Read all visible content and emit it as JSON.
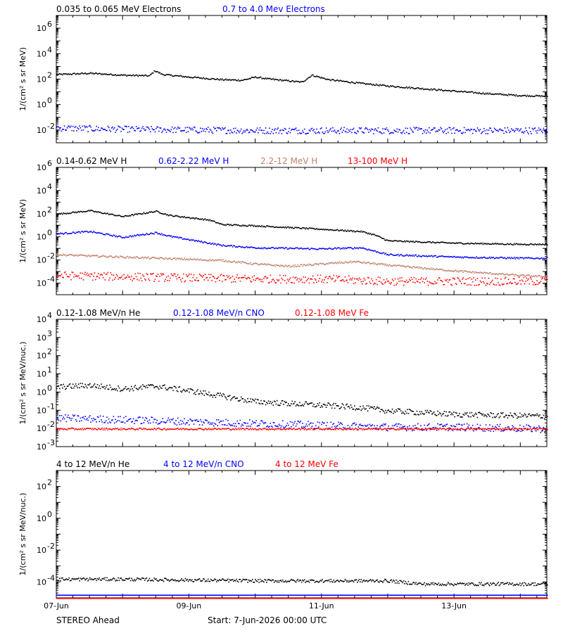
{
  "footer": {
    "spacecraft": "STEREO Ahead",
    "start": "Start:  7-Jun-2026 00:00 UTC"
  },
  "x_ticks": [
    {
      "day": 0,
      "label": "07-Jun"
    },
    {
      "day": 2,
      "label": "09-Jun"
    },
    {
      "day": 4,
      "label": "11-Jun"
    },
    {
      "day": 6,
      "label": "13-Jun"
    }
  ],
  "colors": {
    "black": "#000000",
    "blue": "#0000ff",
    "tan": "#c0806a",
    "red": "#ff0000"
  },
  "chart_data": [
    {
      "type": "scatter",
      "panel": "electrons",
      "ylabel": "1/(cm² s sr MeV)",
      "log_y": true,
      "ylim_exp": [
        -3,
        7
      ],
      "ytick_exps": [
        -2,
        0,
        2,
        4,
        6
      ],
      "xlim_days": [
        0,
        7.4
      ],
      "series": [
        {
          "name": "0.035 to 0.065 MeV Electrons",
          "color": "#000000",
          "x_days": [
            0,
            0.5,
            1.0,
            1.4,
            1.48,
            1.6,
            2.0,
            2.5,
            2.8,
            3.0,
            3.2,
            3.5,
            3.7,
            3.85,
            4.1,
            4.6,
            5.0,
            5.5,
            6.0,
            6.5,
            7.0,
            7.4
          ],
          "log10_values": [
            2.4,
            2.5,
            2.35,
            2.3,
            2.7,
            2.4,
            2.2,
            2.0,
            1.95,
            2.2,
            2.05,
            1.9,
            1.8,
            2.35,
            2.0,
            1.7,
            1.5,
            1.3,
            1.1,
            0.9,
            0.75,
            0.7
          ],
          "scatter": 0.06
        },
        {
          "name": "0.7 to 4.0 Mev Electrons",
          "color": "#0000ff",
          "x_days": [
            0,
            1.0,
            2.0,
            3.0,
            4.0,
            5.0,
            6.0,
            7.4
          ],
          "log10_values": [
            -1.8,
            -1.9,
            -1.95,
            -2.0,
            -2.0,
            -2.0,
            -2.0,
            -2.0
          ],
          "scatter": 0.25
        }
      ]
    },
    {
      "type": "scatter",
      "panel": "protons",
      "ylabel": "1/(cm² s sr MeV)",
      "log_y": true,
      "ylim_exp": [
        -5,
        6
      ],
      "ytick_exps": [
        -4,
        -2,
        0,
        2,
        4,
        6
      ],
      "xlim_days": [
        0,
        7.4
      ],
      "series": [
        {
          "name": "0.14-0.62 MeV H",
          "color": "#000000",
          "x_days": [
            0,
            0.5,
            1.0,
            1.5,
            1.7,
            2.3,
            2.5,
            3.0,
            4.0,
            4.6,
            4.8,
            5.0,
            6.0,
            7.0,
            7.4
          ],
          "log10_values": [
            2.0,
            2.3,
            1.8,
            2.25,
            1.9,
            1.5,
            1.1,
            1.0,
            0.7,
            0.5,
            0.2,
            -0.3,
            -0.5,
            -0.6,
            -0.6
          ],
          "scatter": 0.06
        },
        {
          "name": "0.62-2.22 MeV H",
          "color": "#0000ff",
          "x_days": [
            0,
            0.5,
            1.0,
            1.5,
            1.7,
            2.5,
            3.0,
            4.0,
            4.6,
            5.0,
            6.0,
            7.0,
            7.4
          ],
          "log10_values": [
            0.3,
            0.5,
            0.0,
            0.4,
            0.1,
            -0.7,
            -0.9,
            -1.0,
            -0.9,
            -1.5,
            -1.7,
            -1.8,
            -1.8
          ],
          "scatter": 0.07
        },
        {
          "name": "2.2-12 MeV H",
          "color": "#c0806a",
          "x_days": [
            0,
            1.0,
            2.0,
            2.5,
            3.0,
            3.5,
            4.0,
            4.5,
            5.0,
            6.0,
            7.0,
            7.4
          ],
          "log10_values": [
            -1.5,
            -1.7,
            -1.9,
            -2.0,
            -2.3,
            -2.5,
            -2.3,
            -2.1,
            -2.4,
            -2.9,
            -3.3,
            -3.4
          ],
          "scatter": 0.08
        },
        {
          "name": "13-100 MeV H",
          "color": "#ff0000",
          "x_days": [
            0,
            1.0,
            2.0,
            3.0,
            4.0,
            5.0,
            6.0,
            7.4
          ],
          "log10_values": [
            -3.3,
            -3.4,
            -3.5,
            -3.6,
            -3.6,
            -3.8,
            -3.8,
            -3.8
          ],
          "scatter": 0.35
        }
      ]
    },
    {
      "type": "scatter",
      "panel": "low-energy-heavy-ions",
      "ylabel": "1/(cm² s sr MeV/nuc.)",
      "log_y": true,
      "ylim_exp": [
        -3,
        4
      ],
      "ytick_exps": [
        -3,
        -2,
        -1,
        0,
        1,
        2,
        3,
        4
      ],
      "xlim_days": [
        0,
        7.4
      ],
      "series": [
        {
          "name": "0.12-1.08 MeV/n He",
          "color": "#000000",
          "x_days": [
            0,
            0.5,
            1.0,
            1.5,
            2.0,
            2.5,
            3.0,
            3.5,
            4.0,
            4.5,
            5.0,
            6.0,
            7.4
          ],
          "log10_values": [
            0.3,
            0.4,
            0.2,
            0.35,
            0.1,
            -0.2,
            -0.5,
            -0.6,
            -0.7,
            -0.8,
            -1.0,
            -1.2,
            -1.3
          ],
          "scatter": 0.15
        },
        {
          "name": "0.12-1.08 MeV/n CNO",
          "color": "#0000ff",
          "x_days": [
            0,
            1.0,
            2.0,
            3.0,
            4.0,
            5.0,
            6.0,
            7.4
          ],
          "log10_values": [
            -1.4,
            -1.5,
            -1.6,
            -1.7,
            -1.8,
            -1.9,
            -1.9,
            -2.0
          ],
          "scatter": 0.2
        },
        {
          "name": "0.12-1.08 MeV Fe",
          "color": "#ff0000",
          "x_days": [
            0,
            2.0,
            4.0,
            6.0,
            7.4
          ],
          "log10_values": [
            -2.0,
            -2.0,
            -2.0,
            -2.0,
            -2.0
          ],
          "scatter": 0.05
        }
      ]
    },
    {
      "type": "scatter",
      "panel": "high-energy-heavy-ions",
      "ylabel": "1/(cm² s sr MeV/nuc.)",
      "log_y": true,
      "ylim_exp": [
        -5,
        3
      ],
      "ytick_exps": [
        -4,
        -2,
        0,
        2
      ],
      "xlim_days": [
        0,
        7.4
      ],
      "series": [
        {
          "name": "4 to 12 MeV/n He",
          "color": "#000000",
          "x_days": [
            0,
            1.0,
            2.0,
            3.0,
            4.0,
            5.0,
            5.5,
            6.0,
            7.4
          ],
          "log10_values": [
            -3.8,
            -3.8,
            -3.85,
            -3.9,
            -3.9,
            -3.9,
            -4.1,
            -4.1,
            -4.1
          ],
          "scatter": 0.1
        },
        {
          "name": "4 to 12 MeV/n CNO",
          "color": "#0000ff",
          "x_days": [
            0,
            7.4
          ],
          "log10_values": [
            -4.8,
            -4.8
          ],
          "scatter": 0.0
        },
        {
          "name": "4 to 12 MeV Fe",
          "color": "#ff0000",
          "x_days": [
            0,
            7.4
          ],
          "log10_values": [
            -5.0,
            -5.0
          ],
          "scatter": 0.0
        }
      ]
    }
  ]
}
